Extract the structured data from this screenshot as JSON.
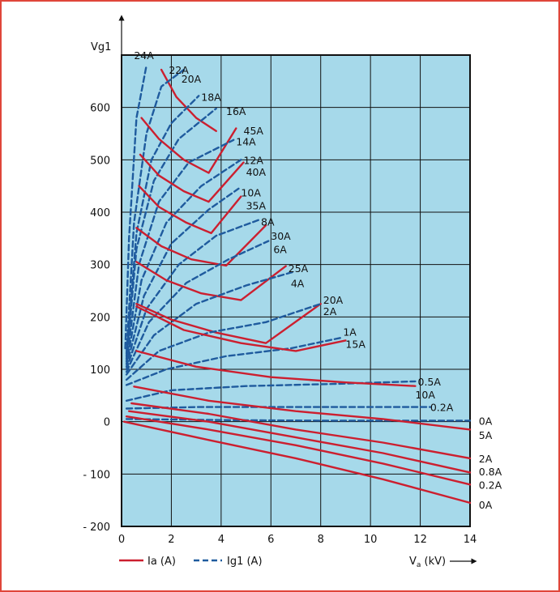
{
  "colors": {
    "frame_border": "#e0453a",
    "plot_background": "#a6d9ea",
    "anode_current_line": "#cc1f2f",
    "grid_current_line": "#1f5b9e",
    "grid_line": "#111111",
    "text": "#111111"
  },
  "chart_data": {
    "type": "line",
    "title": "",
    "xlabel": "Va (kV)",
    "xlabel_main": "V",
    "xlabel_sub": "a",
    "xlabel_unit": " (kV)",
    "ylabel": "Vg1",
    "xlim": [
      0,
      14
    ],
    "ylim": [
      -200,
      700
    ],
    "x_ticks": [
      0,
      2,
      4,
      6,
      8,
      10,
      12,
      14
    ],
    "y_ticks": [
      -200,
      -100,
      0,
      100,
      200,
      300,
      400,
      500,
      600
    ],
    "y_tick_labels": [
      "- 200",
      "- 100",
      "0",
      "100",
      "200",
      "300",
      "400",
      "500",
      "600"
    ],
    "grid": true,
    "legend": {
      "placement": "bottom-left",
      "items": [
        {
          "label": "Ia (A)",
          "style": "solid"
        },
        {
          "label": "Ig1 (A)",
          "style": "dashed"
        }
      ]
    },
    "series": [
      {
        "name": "24A",
        "kind": "Ig1",
        "style": "dashed",
        "points": [
          [
            0.15,
            140
          ],
          [
            0.3,
            350
          ],
          [
            0.6,
            580
          ],
          [
            1.0,
            680
          ]
        ]
      },
      {
        "name": "22A",
        "kind": "Ia",
        "style": "solid",
        "points": [
          [
            1.6,
            672
          ],
          [
            2.2,
            620
          ],
          [
            3.0,
            580
          ],
          [
            3.8,
            555
          ]
        ]
      },
      {
        "name": "20A",
        "kind": "Ig1",
        "style": "dashed",
        "points": [
          [
            0.2,
            130
          ],
          [
            0.5,
            380
          ],
          [
            1.0,
            550
          ],
          [
            1.6,
            640
          ],
          [
            2.5,
            672
          ]
        ]
      },
      {
        "name": "18A",
        "kind": "Ig1",
        "style": "dashed",
        "points": [
          [
            0.2,
            125
          ],
          [
            0.6,
            360
          ],
          [
            1.2,
            500
          ],
          [
            2.0,
            570
          ],
          [
            3.1,
            622
          ]
        ]
      },
      {
        "name": "16A",
        "kind": "Ig1",
        "style": "dashed",
        "points": [
          [
            0.2,
            120
          ],
          [
            0.6,
            330
          ],
          [
            1.3,
            460
          ],
          [
            2.3,
            540
          ],
          [
            3.8,
            598
          ]
        ]
      },
      {
        "name": "45A",
        "kind": "Ia",
        "style": "solid",
        "points": [
          [
            0.8,
            580
          ],
          [
            1.5,
            540
          ],
          [
            2.5,
            500
          ],
          [
            3.5,
            475
          ],
          [
            4.6,
            560
          ]
        ]
      },
      {
        "name": "14A",
        "kind": "Ig1",
        "style": "dashed",
        "points": [
          [
            0.2,
            115
          ],
          [
            0.7,
            300
          ],
          [
            1.5,
            420
          ],
          [
            2.7,
            495
          ],
          [
            4.5,
            538
          ]
        ]
      },
      {
        "name": "12A",
        "kind": "Ig1",
        "style": "dashed",
        "points": [
          [
            0.2,
            110
          ],
          [
            0.8,
            270
          ],
          [
            1.8,
            380
          ],
          [
            3.2,
            450
          ],
          [
            4.8,
            500
          ]
        ]
      },
      {
        "name": "40A",
        "kind": "Ia",
        "style": "solid",
        "points": [
          [
            0.75,
            510
          ],
          [
            1.5,
            470
          ],
          [
            2.5,
            440
          ],
          [
            3.5,
            420
          ],
          [
            4.9,
            495
          ]
        ]
      },
      {
        "name": "10A",
        "kind": "Ig1",
        "style": "dashed",
        "points": [
          [
            0.2,
            105
          ],
          [
            0.9,
            240
          ],
          [
            2.0,
            340
          ],
          [
            3.5,
            405
          ],
          [
            4.7,
            445
          ]
        ]
      },
      {
        "name": "35A",
        "kind": "Ia",
        "style": "solid",
        "points": [
          [
            0.7,
            450
          ],
          [
            1.5,
            410
          ],
          [
            2.6,
            380
          ],
          [
            3.6,
            360
          ],
          [
            4.8,
            430
          ]
        ]
      },
      {
        "name": "8A",
        "kind": "Ig1",
        "style": "dashed",
        "points": [
          [
            0.2,
            100
          ],
          [
            1.0,
            215
          ],
          [
            2.3,
            300
          ],
          [
            3.8,
            355
          ],
          [
            5.5,
            385
          ]
        ]
      },
      {
        "name": "30A",
        "kind": "Ia",
        "style": "solid",
        "points": [
          [
            0.6,
            370
          ],
          [
            1.6,
            335
          ],
          [
            2.8,
            310
          ],
          [
            4.2,
            298
          ],
          [
            5.8,
            375
          ]
        ]
      },
      {
        "name": "6A",
        "kind": "Ig1",
        "style": "dashed",
        "points": [
          [
            0.2,
            95
          ],
          [
            1.1,
            190
          ],
          [
            2.6,
            265
          ],
          [
            4.3,
            310
          ],
          [
            5.9,
            345
          ]
        ]
      },
      {
        "name": "25A",
        "kind": "Ia",
        "style": "solid",
        "points": [
          [
            0.6,
            305
          ],
          [
            1.8,
            270
          ],
          [
            3.2,
            245
          ],
          [
            4.8,
            232
          ],
          [
            6.6,
            297
          ]
        ]
      },
      {
        "name": "4A",
        "kind": "Ig1",
        "style": "dashed",
        "points": [
          [
            0.2,
            90
          ],
          [
            1.3,
            165
          ],
          [
            3.0,
            225
          ],
          [
            5.0,
            260
          ],
          [
            6.9,
            286
          ]
        ]
      },
      {
        "name": "20A",
        "kind": "Ia",
        "style": "solid",
        "points": [
          [
            0.6,
            225
          ],
          [
            2.0,
            195
          ],
          [
            3.8,
            170
          ],
          [
            5.8,
            150
          ],
          [
            8.0,
            225
          ]
        ]
      },
      {
        "name": "2A",
        "kind": "Ig1",
        "style": "dashed",
        "points": [
          [
            0.2,
            80
          ],
          [
            1.5,
            135
          ],
          [
            3.5,
            170
          ],
          [
            5.8,
            190
          ],
          [
            8.0,
            225
          ]
        ]
      },
      {
        "name": "1A",
        "kind": "Ig1",
        "style": "dashed",
        "points": [
          [
            0.2,
            70
          ],
          [
            1.8,
            100
          ],
          [
            4.2,
            125
          ],
          [
            6.8,
            140
          ],
          [
            8.8,
            160
          ]
        ]
      },
      {
        "name": "15A",
        "kind": "Ia",
        "style": "solid",
        "points": [
          [
            0.6,
            220
          ],
          [
            2.5,
            175
          ],
          [
            4.8,
            150
          ],
          [
            7.0,
            135
          ],
          [
            9.0,
            155
          ]
        ]
      },
      {
        "name": "0.5A",
        "kind": "Ig1",
        "style": "dashed",
        "points": [
          [
            0.2,
            40
          ],
          [
            2.0,
            60
          ],
          [
            5.0,
            68
          ],
          [
            8.5,
            72
          ],
          [
            11.8,
            77
          ]
        ]
      },
      {
        "name": "10A",
        "kind": "Ia",
        "style": "solid",
        "points": [
          [
            0.6,
            135
          ],
          [
            3.0,
            105
          ],
          [
            6.0,
            85
          ],
          [
            9.0,
            75
          ],
          [
            11.8,
            68
          ]
        ]
      },
      {
        "name": "0.2A",
        "kind": "Ig1",
        "style": "dashed",
        "points": [
          [
            0.2,
            25
          ],
          [
            3.0,
            28
          ],
          [
            7.0,
            28
          ],
          [
            10.5,
            28
          ],
          [
            12.4,
            28
          ]
        ]
      },
      {
        "name": "0A",
        "kind": "Ig1",
        "style": "dashed",
        "points": [
          [
            0.2,
            5
          ],
          [
            4.0,
            3
          ],
          [
            8.0,
            2
          ],
          [
            12.0,
            2
          ],
          [
            14.0,
            2
          ]
        ]
      },
      {
        "name": "5A",
        "kind": "Ia",
        "style": "solid",
        "points": [
          [
            0.5,
            67
          ],
          [
            3.5,
            40
          ],
          [
            7.0,
            20
          ],
          [
            10.5,
            5
          ],
          [
            14.0,
            -15
          ]
        ]
      },
      {
        "name": "2A",
        "kind": "Ia",
        "style": "solid",
        "points": [
          [
            0.4,
            35
          ],
          [
            3.5,
            15
          ],
          [
            7.0,
            -15
          ],
          [
            10.5,
            -40
          ],
          [
            14.0,
            -70
          ]
        ]
      },
      {
        "name": "0.8A",
        "kind": "Ia",
        "style": "solid",
        "points": [
          [
            0.3,
            20
          ],
          [
            3.5,
            0
          ],
          [
            7.0,
            -30
          ],
          [
            10.5,
            -60
          ],
          [
            14.0,
            -97
          ]
        ]
      },
      {
        "name": "0.2A",
        "kind": "Ia",
        "style": "solid",
        "points": [
          [
            0.2,
            10
          ],
          [
            3.5,
            -15
          ],
          [
            7.0,
            -45
          ],
          [
            10.5,
            -80
          ],
          [
            14.0,
            -120
          ]
        ]
      },
      {
        "name": "0A",
        "kind": "Ia",
        "style": "solid",
        "points": [
          [
            0.1,
            0
          ],
          [
            3.5,
            -35
          ],
          [
            7.0,
            -70
          ],
          [
            10.5,
            -110
          ],
          [
            14.0,
            -155
          ]
        ]
      }
    ],
    "labels": [
      {
        "text": "24A",
        "at": [
          0.5,
          700
        ]
      },
      {
        "text": "22A",
        "at": [
          1.9,
          672
        ]
      },
      {
        "text": "20A",
        "at": [
          2.4,
          655
        ]
      },
      {
        "text": "18A",
        "at": [
          3.2,
          620
        ]
      },
      {
        "text": "16A",
        "at": [
          4.2,
          593
        ]
      },
      {
        "text": "45A",
        "at": [
          4.9,
          556
        ]
      },
      {
        "text": "14A",
        "at": [
          4.6,
          535
        ]
      },
      {
        "text": "12A",
        "at": [
          4.9,
          500
        ]
      },
      {
        "text": "40A",
        "at": [
          5.0,
          477
        ]
      },
      {
        "text": "10A",
        "at": [
          4.8,
          438
        ]
      },
      {
        "text": "35A",
        "at": [
          5.0,
          413
        ]
      },
      {
        "text": "8A",
        "at": [
          5.6,
          382
        ]
      },
      {
        "text": "30A",
        "at": [
          6.0,
          355
        ]
      },
      {
        "text": "6A",
        "at": [
          6.1,
          330
        ]
      },
      {
        "text": "25A",
        "at": [
          6.7,
          293
        ]
      },
      {
        "text": "4A",
        "at": [
          6.8,
          265
        ]
      },
      {
        "text": "20A",
        "at": [
          8.1,
          233
        ]
      },
      {
        "text": "2A",
        "at": [
          8.1,
          211
        ]
      },
      {
        "text": "1A",
        "at": [
          8.9,
          172
        ]
      },
      {
        "text": "15A",
        "at": [
          9.0,
          149
        ]
      },
      {
        "text": "0.5A",
        "at": [
          11.9,
          77
        ]
      },
      {
        "text": "10A",
        "at": [
          11.8,
          52
        ]
      },
      {
        "text": "0.2A",
        "at": [
          12.4,
          28
        ]
      },
      {
        "text": "0A",
        "at": [
          14.35,
          2
        ]
      },
      {
        "text": "5A",
        "at": [
          14.35,
          -25
        ]
      },
      {
        "text": "2A",
        "at": [
          14.35,
          -70
        ]
      },
      {
        "text": "0.8A",
        "at": [
          14.35,
          -95
        ]
      },
      {
        "text": "0.2A",
        "at": [
          14.35,
          -120
        ]
      },
      {
        "text": "0A",
        "at": [
          14.35,
          -158
        ]
      }
    ]
  }
}
